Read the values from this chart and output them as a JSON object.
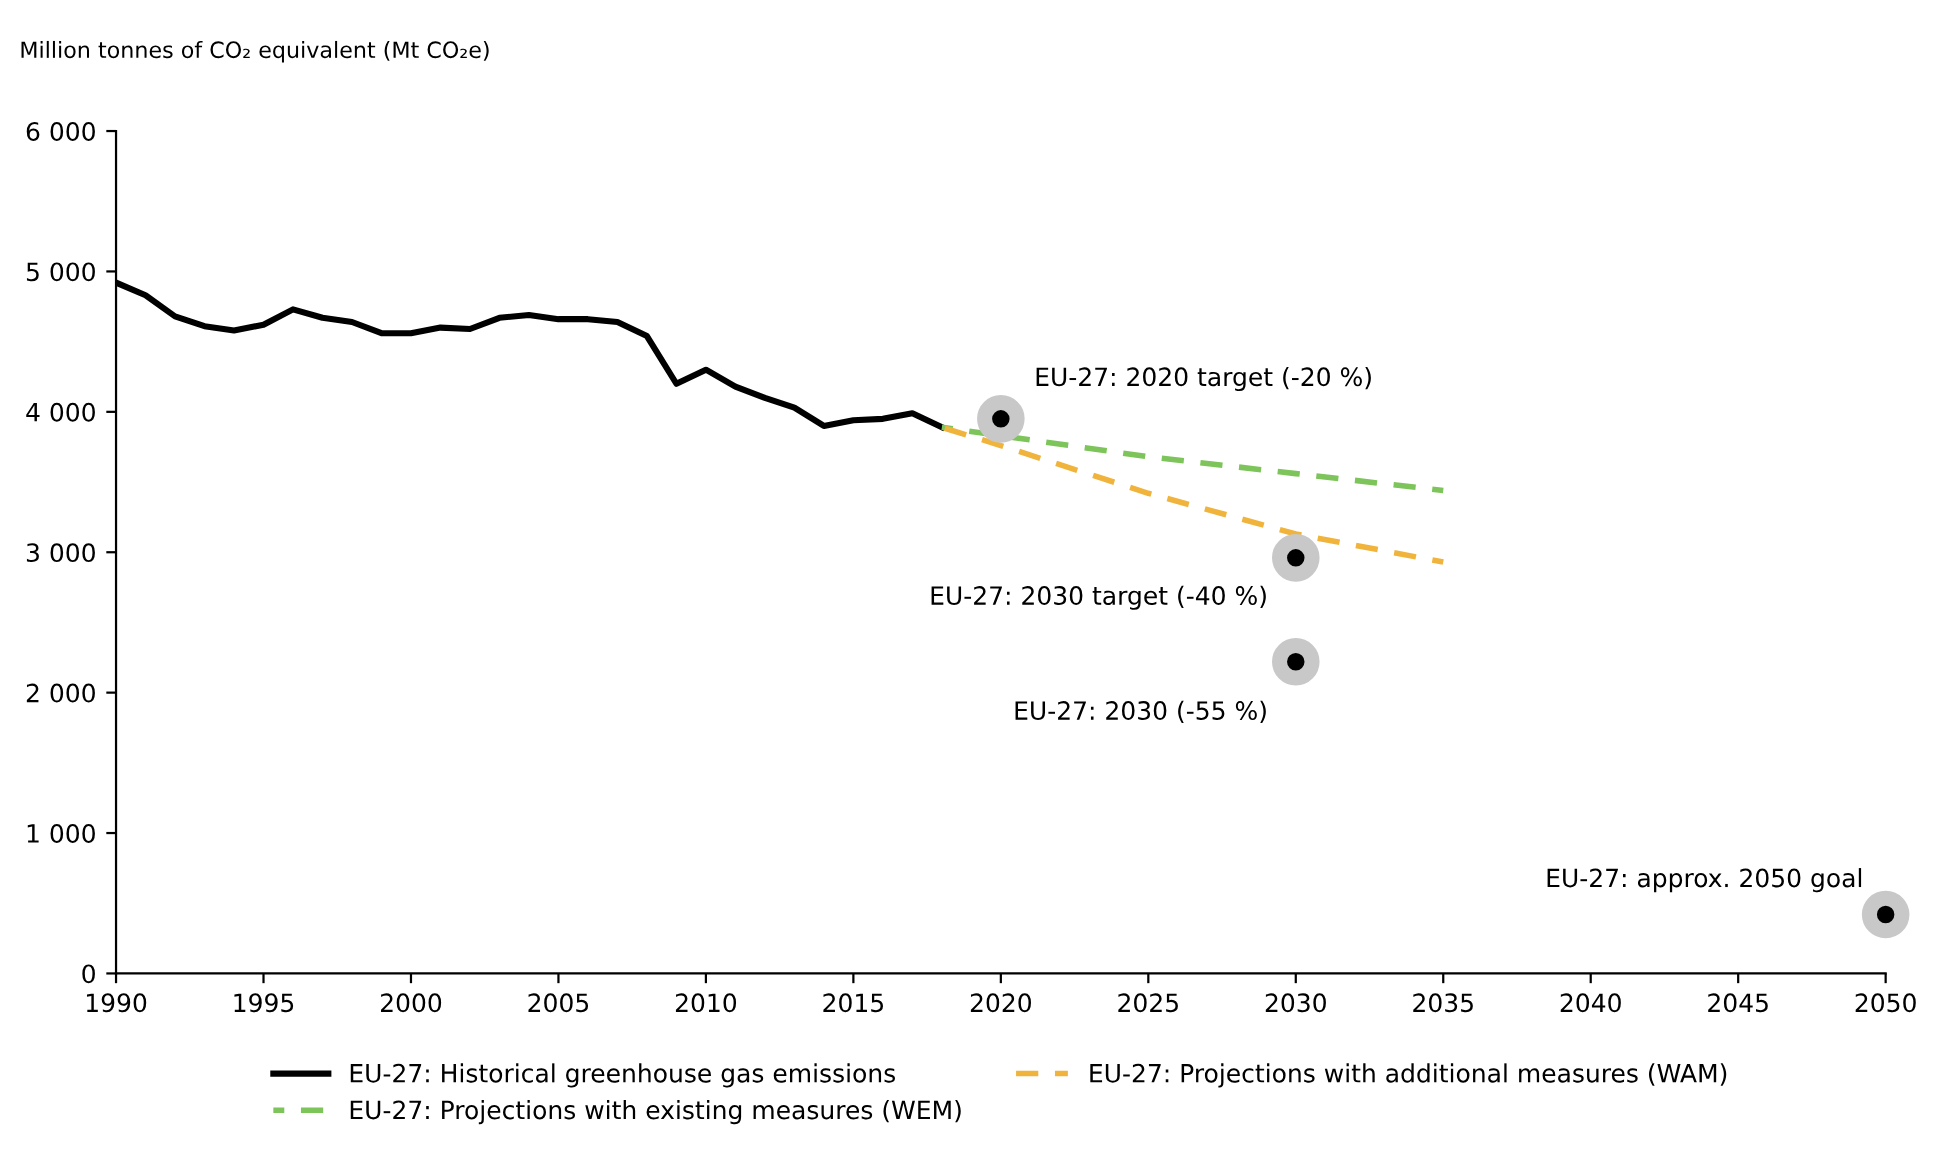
{
  "chart_data": {
    "type": "line",
    "ylabel": "Million tonnes of CO₂ equivalent (Mt CO₂e)",
    "xlim": [
      1990,
      2050
    ],
    "xticks": [
      1990,
      1995,
      2000,
      2005,
      2010,
      2015,
      2020,
      2025,
      2030,
      2035,
      2040,
      2045,
      2050
    ],
    "ylim": [
      0,
      6000
    ],
    "yticks": [
      {
        "value": 0,
        "label": "0"
      },
      {
        "value": 1000,
        "label": "1 000"
      },
      {
        "value": 2000,
        "label": "2 000"
      },
      {
        "value": 3000,
        "label": "3 000"
      },
      {
        "value": 4000,
        "label": "4 000"
      },
      {
        "value": 5000,
        "label": "5 000"
      },
      {
        "value": 6000,
        "label": "6 000"
      }
    ],
    "grid": false,
    "legend": "bottom",
    "series": [
      {
        "name": "EU-27: Historical greenhouse gas emissions",
        "color": "#000000",
        "line_style": "solid",
        "x": [
          1990,
          1991,
          1992,
          1993,
          1994,
          1995,
          1996,
          1997,
          1998,
          1999,
          2000,
          2001,
          2002,
          2003,
          2004,
          2005,
          2006,
          2007,
          2008,
          2009,
          2010,
          2011,
          2012,
          2013,
          2014,
          2015,
          2016,
          2017,
          2018
        ],
        "values": [
          4920,
          4830,
          4680,
          4610,
          4580,
          4620,
          4730,
          4670,
          4640,
          4560,
          4560,
          4600,
          4590,
          4670,
          4690,
          4660,
          4660,
          4640,
          4540,
          4200,
          4300,
          4180,
          4100,
          4030,
          3900,
          3940,
          3950,
          3990,
          3890
        ]
      },
      {
        "name": "EU-27: Projections with existing measures (WEM)",
        "color": "#7dc45a",
        "line_style": "dashed",
        "x": [
          2018,
          2025,
          2030,
          2035
        ],
        "values": [
          3890,
          3680,
          3560,
          3440
        ]
      },
      {
        "name": "EU-27: Projections with additional measures (WAM)",
        "color": "#f0b43c",
        "line_style": "dashed",
        "x": [
          2018,
          2020,
          2025,
          2030,
          2035
        ],
        "values": [
          3890,
          3760,
          3420,
          3130,
          2930
        ]
      },
      {
        "type": "scatter",
        "color": "#000000",
        "marker": "circle",
        "x": [
          2020,
          2030,
          2030,
          2050
        ],
        "values": [
          3950,
          2960,
          2220,
          420
        ]
      }
    ],
    "annotations": [
      {
        "text": "EU-27: 2020 target (-20 %)",
        "x": 2020,
        "y": 3950
      },
      {
        "text": "EU-27: 2030 target (-40 %)",
        "x": 2030,
        "y": 2960
      },
      {
        "text": "EU-27: 2030 (-55 %)",
        "x": 2030,
        "y": 2220
      },
      {
        "text": "EU-27: approx. 2050 goal",
        "x": 2050,
        "y": 420
      }
    ]
  }
}
